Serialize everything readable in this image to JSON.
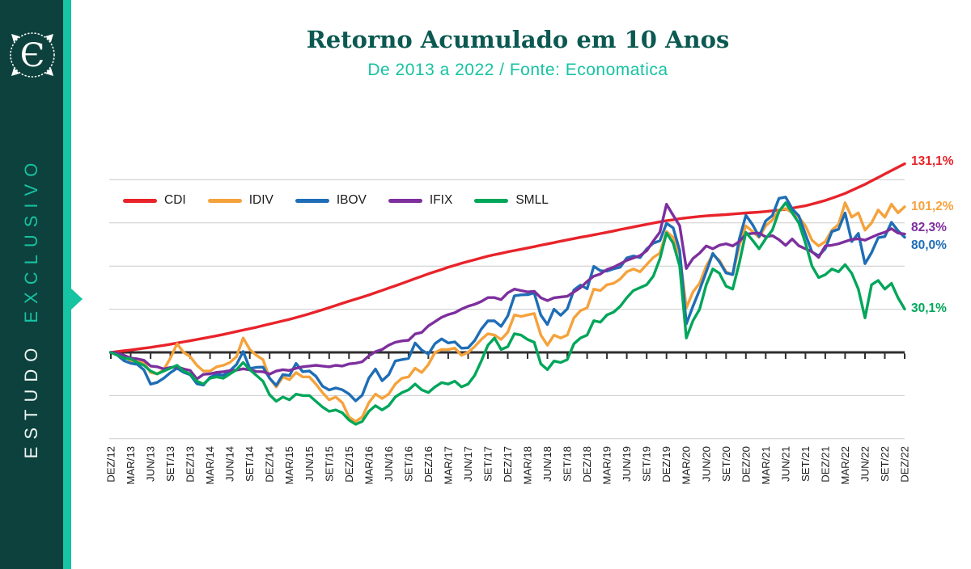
{
  "sidebar": {
    "vertical_text_primary": "ESTUDO",
    "vertical_text_secondary": "EXCLUSIVO",
    "logo_glyph": "Є",
    "bg_color": "#0d413d",
    "accent_color": "#16c3a2"
  },
  "header": {
    "title": "Retorno Acumulado em 10 Anos",
    "subtitle": "De 2013 a 2022 / Fonte: Economatica",
    "title_color": "#0b5951",
    "subtitle_color": "#16c3a2"
  },
  "chart_data": {
    "type": "line",
    "unit": "%",
    "x_labels": [
      "DEZ/12",
      "MAR/13",
      "JUN/13",
      "SET/13",
      "DEZ/13",
      "MAR/14",
      "JUN/14",
      "SET/14",
      "DEZ/14",
      "MAR/15",
      "JUN/15",
      "SET/15",
      "DEZ/15",
      "MAR/16",
      "JUN/16",
      "SET/16",
      "DEZ/16",
      "MAR/17",
      "JUN/17",
      "SET/17",
      "DEZ/17",
      "MAR/18",
      "JUN/18",
      "SET/18",
      "DEZ/18",
      "MAR/19",
      "JUN/19",
      "SET/19",
      "DEZ/19",
      "MAR/20",
      "JUN/20",
      "SET/20",
      "DEZ/20",
      "MAR/21",
      "JUN/21",
      "SET/21",
      "DEZ/21",
      "MAR/22",
      "JUN/22",
      "SET/22",
      "DEZ/22"
    ],
    "points_per_label": 3,
    "ylim": [
      -75,
      140
    ],
    "gridlines": [
      -60,
      -30,
      0,
      30,
      60,
      90,
      120
    ],
    "grid_interval_pct": 30,
    "grid_color": "#cbcbcb",
    "axis_color": "#2e2e2e",
    "series": [
      {
        "name": "CDI",
        "color": "#e8232a",
        "end_label": "131,1%",
        "values": [
          0,
          0.6,
          1.1,
          1.7,
          2.3,
          2.9,
          3.5,
          4.2,
          4.9,
          5.7,
          6.5,
          7.3,
          8.1,
          9.0,
          9.8,
          10.7,
          11.6,
          12.5,
          13.5,
          14.5,
          15.5,
          16.5,
          17.5,
          18.6,
          19.7,
          20.8,
          21.9,
          23.0,
          24.2,
          25.5,
          26.8,
          28.2,
          29.6,
          31.1,
          32.6,
          34.1,
          35.6,
          37.0,
          38.4,
          39.9,
          41.5,
          43.1,
          44.7,
          46.3,
          47.9,
          49.6,
          51.3,
          52.9,
          54.6,
          56.1,
          57.6,
          59.2,
          60.5,
          61.9,
          63.2,
          64.4,
          65.7,
          66.9,
          67.9,
          68.9,
          69.9,
          70.8,
          71.7,
          72.6,
          73.5,
          74.5,
          75.4,
          76.3,
          77.3,
          78.2,
          79.1,
          80.0,
          80.8,
          81.7,
          82.6,
          83.5,
          84.4,
          85.4,
          86.3,
          87.2,
          88.1,
          89.0,
          89.9,
          90.8,
          91.6,
          92.2,
          92.9,
          93.5,
          94.0,
          94.5,
          94.9,
          95.2,
          95.5,
          95.8,
          96.2,
          96.5,
          96.9,
          97.2,
          97.5,
          97.9,
          98.4,
          98.9,
          99.5,
          100.3,
          101.1,
          101.9,
          103.1,
          104.3,
          105.6,
          107.2,
          108.8,
          110.5,
          112.6,
          114.7,
          116.8,
          119.2,
          121.6,
          124.0,
          126.4,
          128.7,
          131.1
        ]
      },
      {
        "name": "IDIV",
        "color": "#f5a23c",
        "end_label": "101,2%",
        "values": [
          0,
          -1,
          -2,
          -6,
          -6,
          -7,
          -14,
          -15,
          -12,
          -4,
          6,
          0,
          -3,
          -9,
          -13,
          -13,
          -10,
          -9,
          -7,
          -3,
          10,
          2,
          -2,
          -5,
          -18,
          -24,
          -17,
          -19,
          -14,
          -17,
          -17,
          -22,
          -28,
          -33,
          -31,
          -35,
          -45,
          -48,
          -45,
          -35,
          -29,
          -32,
          -29,
          -22,
          -18,
          -17,
          -11,
          -14,
          -8.4,
          0,
          2,
          2,
          3,
          -2,
          0,
          4,
          9,
          13,
          12,
          9,
          14,
          26,
          25,
          26,
          27,
          12,
          5,
          12,
          10,
          12,
          24,
          29,
          31,
          44,
          43,
          47,
          48,
          51,
          56,
          58,
          56,
          61,
          66,
          69,
          84,
          80,
          68,
          31,
          42,
          48,
          60,
          68,
          64,
          56,
          54,
          74,
          88,
          84,
          80,
          88,
          92,
          99,
          100,
          97,
          94,
          88,
          78,
          74,
          77,
          85,
          89,
          104,
          94,
          97,
          85,
          90,
          99,
          94,
          103,
          97,
          101.2
        ]
      },
      {
        "name": "IBOV",
        "color": "#1e6db6",
        "end_label": "80,0%",
        "values": [
          0,
          -2,
          -5.8,
          -7.5,
          -8.3,
          -12.2,
          -22.1,
          -20.9,
          -17.9,
          -14.1,
          -11,
          -13.9,
          -15.5,
          -21.8,
          -22.7,
          -17.3,
          -15.3,
          -15.9,
          -12.8,
          -8.4,
          0.6,
          -11.2,
          -10.4,
          -10.2,
          -18,
          -23,
          -15.4,
          -16.1,
          -7.7,
          -13.4,
          -12.9,
          -16.6,
          -23.5,
          -26.1,
          -24.7,
          -26,
          -28.9,
          -33.7,
          -29.8,
          -17.9,
          -11.6,
          -19.7,
          -15.5,
          -6,
          -5,
          -4.2,
          6.5,
          1.6,
          -1.2,
          6.1,
          9.4,
          6.6,
          7.3,
          2.9,
          3.2,
          8.2,
          16.2,
          21.9,
          21.9,
          18.1,
          25.3,
          39.3,
          40,
          40.1,
          41.3,
          25.9,
          19.4,
          30,
          25.8,
          30.2,
          43.4,
          46.8,
          44.2,
          59.8,
          56.8,
          56.5,
          58.1,
          59.2,
          65.7,
          67,
          65.9,
          71.9,
          75.9,
          77.6,
          89.7,
          86.6,
          70.9,
          19.8,
          32.1,
          43.4,
          56,
          68.8,
          63,
          55.2,
          54.1,
          78.7,
          95.3,
          88.8,
          80.5,
          91.4,
          95.1,
          107.1,
          108,
          99.8,
          94.9,
          82.1,
          69.8,
          67.2,
          72,
          84,
          85.6,
          96.9,
          77,
          82.7,
          61.7,
          69.3,
          79.7,
          80.5,
          90.4,
          84.6,
          80
        ]
      },
      {
        "name": "IFIX",
        "color": "#7d2f9d",
        "end_label": "82,3%",
        "values": [
          0,
          -0.5,
          -2,
          -4,
          -4.5,
          -5.5,
          -9.5,
          -10,
          -11.5,
          -10.5,
          -10,
          -11.5,
          -12.6,
          -18.5,
          -15.3,
          -14.9,
          -13.9,
          -13.4,
          -12.7,
          -12.3,
          -11.4,
          -12.2,
          -13.3,
          -13.4,
          -15.1,
          -13,
          -12,
          -12.5,
          -11,
          -10,
          -9.5,
          -9,
          -9.5,
          -10,
          -9,
          -9.5,
          -8,
          -7.5,
          -6.5,
          -2.5,
          0.5,
          2,
          5,
          7,
          8,
          8.4,
          12.8,
          13.9,
          18.4,
          21.4,
          24.4,
          26.3,
          27.6,
          30.1,
          32.1,
          33.4,
          35.4,
          38.1,
          38.1,
          36.7,
          41.4,
          44,
          43,
          42,
          42.5,
          38,
          36,
          38,
          38.5,
          39,
          42,
          45,
          49.3,
          53,
          54.5,
          57.6,
          59.2,
          61.6,
          64,
          65.6,
          67.3,
          70.6,
          77.4,
          83.6,
          103,
          95.3,
          88,
          58.3,
          65.3,
          69,
          74,
          72,
          74.5,
          75.5,
          74,
          77,
          82.2,
          82.7,
          82.9,
          80.3,
          81.2,
          78.3,
          74.4,
          78.8,
          74.1,
          72,
          70,
          66,
          74,
          74.5,
          75.5,
          77,
          78.5,
          79,
          78,
          80,
          82,
          83.5,
          86,
          83,
          82.3
        ]
      },
      {
        "name": "SMLL",
        "color": "#00a65a",
        "end_label": "30,1%",
        "values": [
          0,
          -2,
          -4,
          -4.5,
          -7,
          -9,
          -13,
          -15,
          -13,
          -11,
          -9,
          -13,
          -15.1,
          -20,
          -22,
          -18,
          -17,
          -18,
          -15,
          -12,
          -7,
          -12,
          -16,
          -20,
          -29.5,
          -34,
          -31,
          -33,
          -29,
          -30,
          -30,
          -34,
          -38,
          -41,
          -40,
          -42,
          -47,
          -50,
          -48,
          -41,
          -37,
          -40,
          -37,
          -31,
          -28,
          -26,
          -22,
          -26,
          -27.9,
          -24,
          -21,
          -22,
          -20,
          -24,
          -22,
          -16,
          -6,
          5,
          10,
          2,
          4,
          13,
          12,
          9,
          7,
          -8,
          -12,
          -6,
          -7,
          -5,
          6,
          10,
          12,
          22,
          21,
          26,
          28,
          32,
          38,
          43,
          45,
          47,
          53,
          65,
          83,
          76,
          60,
          10,
          22,
          30,
          47,
          58,
          55,
          46,
          44,
          62,
          83.4,
          78,
          72,
          79,
          85,
          98,
          104,
          97,
          90,
          76,
          60,
          52,
          54,
          58,
          56,
          61,
          55,
          44,
          24,
          47,
          50,
          44,
          48,
          38,
          30.1
        ]
      }
    ]
  }
}
